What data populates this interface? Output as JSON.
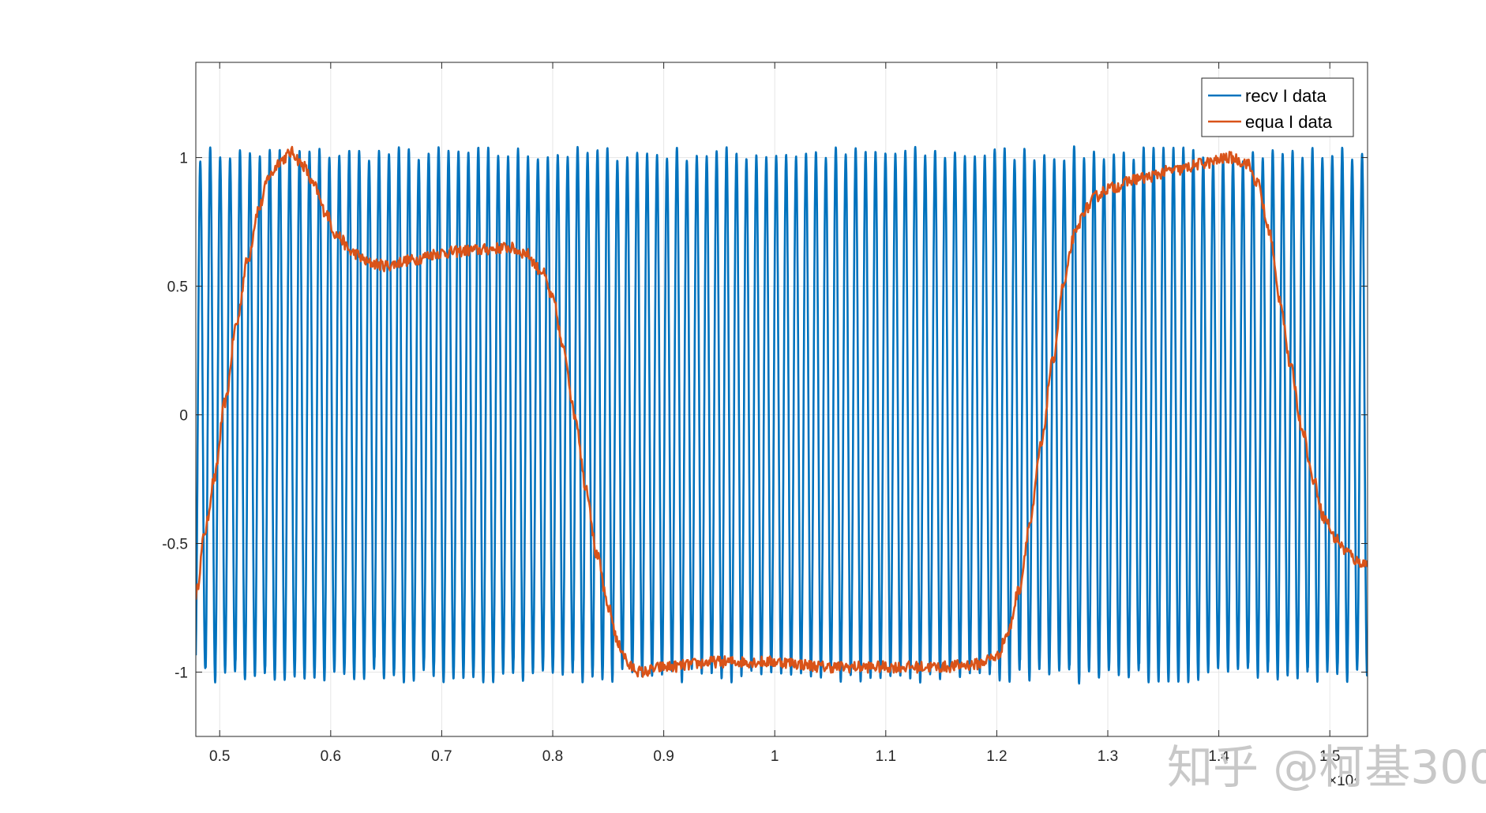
{
  "chart_data": {
    "type": "line",
    "title": "",
    "xlabel": "",
    "ylabel": "",
    "x_exponent_label": "×10⁴",
    "xlim": [
      0.4785,
      1.534
    ],
    "ylim": [
      -1.25,
      1.37
    ],
    "grid": true,
    "legend_position": "top-right",
    "x_ticks": [
      "0.5",
      "0.6",
      "0.7",
      "0.8",
      "0.9",
      "1",
      "1.1",
      "1.2",
      "1.3",
      "1.4",
      "1.5"
    ],
    "x_tick_values": [
      0.5,
      0.6,
      0.7,
      0.8,
      0.9,
      1.0,
      1.1,
      1.2,
      1.3,
      1.4,
      1.5
    ],
    "y_ticks": [
      "1",
      "0.5",
      "0",
      "-0.5",
      "-1"
    ],
    "y_tick_values": [
      1,
      0.5,
      0,
      -0.5,
      -1
    ],
    "series": [
      {
        "name": "recv I data",
        "color": "#0072BD",
        "kind": "oscillation",
        "amplitude": 1.0,
        "cycle_count": 118,
        "x_start": 0.4785,
        "x_end": 1.534
      },
      {
        "name": "equa I data",
        "color": "#D95319",
        "kind": "envelope",
        "x": [
          0.4785,
          0.487,
          0.495,
          0.505,
          0.515,
          0.525,
          0.535,
          0.545,
          0.555,
          0.565,
          0.575,
          0.585,
          0.595,
          0.605,
          0.62,
          0.635,
          0.65,
          0.67,
          0.7,
          0.73,
          0.76,
          0.775,
          0.79,
          0.8,
          0.81,
          0.82,
          0.83,
          0.84,
          0.85,
          0.86,
          0.87,
          0.88,
          0.9,
          0.95,
          1.0,
          1.05,
          1.1,
          1.15,
          1.18,
          1.2,
          1.21,
          1.22,
          1.23,
          1.24,
          1.25,
          1.26,
          1.27,
          1.28,
          1.29,
          1.3,
          1.33,
          1.36,
          1.39,
          1.41,
          1.425,
          1.435,
          1.445,
          1.455,
          1.465,
          1.475,
          1.485,
          1.495,
          1.505,
          1.515,
          1.525,
          1.534
        ],
        "y": [
          -0.7,
          -0.45,
          -0.25,
          0.05,
          0.35,
          0.6,
          0.8,
          0.93,
          0.99,
          1.02,
          0.97,
          0.89,
          0.79,
          0.7,
          0.63,
          0.59,
          0.58,
          0.6,
          0.63,
          0.64,
          0.65,
          0.63,
          0.56,
          0.45,
          0.25,
          0.0,
          -0.28,
          -0.55,
          -0.75,
          -0.9,
          -0.98,
          -1.0,
          -0.98,
          -0.96,
          -0.96,
          -0.98,
          -0.98,
          -0.98,
          -0.97,
          -0.94,
          -0.85,
          -0.68,
          -0.42,
          -0.12,
          0.2,
          0.5,
          0.7,
          0.8,
          0.85,
          0.88,
          0.92,
          0.95,
          0.98,
          1.0,
          0.98,
          0.9,
          0.72,
          0.45,
          0.18,
          -0.05,
          -0.25,
          -0.4,
          -0.48,
          -0.53,
          -0.57,
          -0.58
        ]
      }
    ]
  },
  "watermark": {
    "text": "知乎 @柯基300"
  }
}
